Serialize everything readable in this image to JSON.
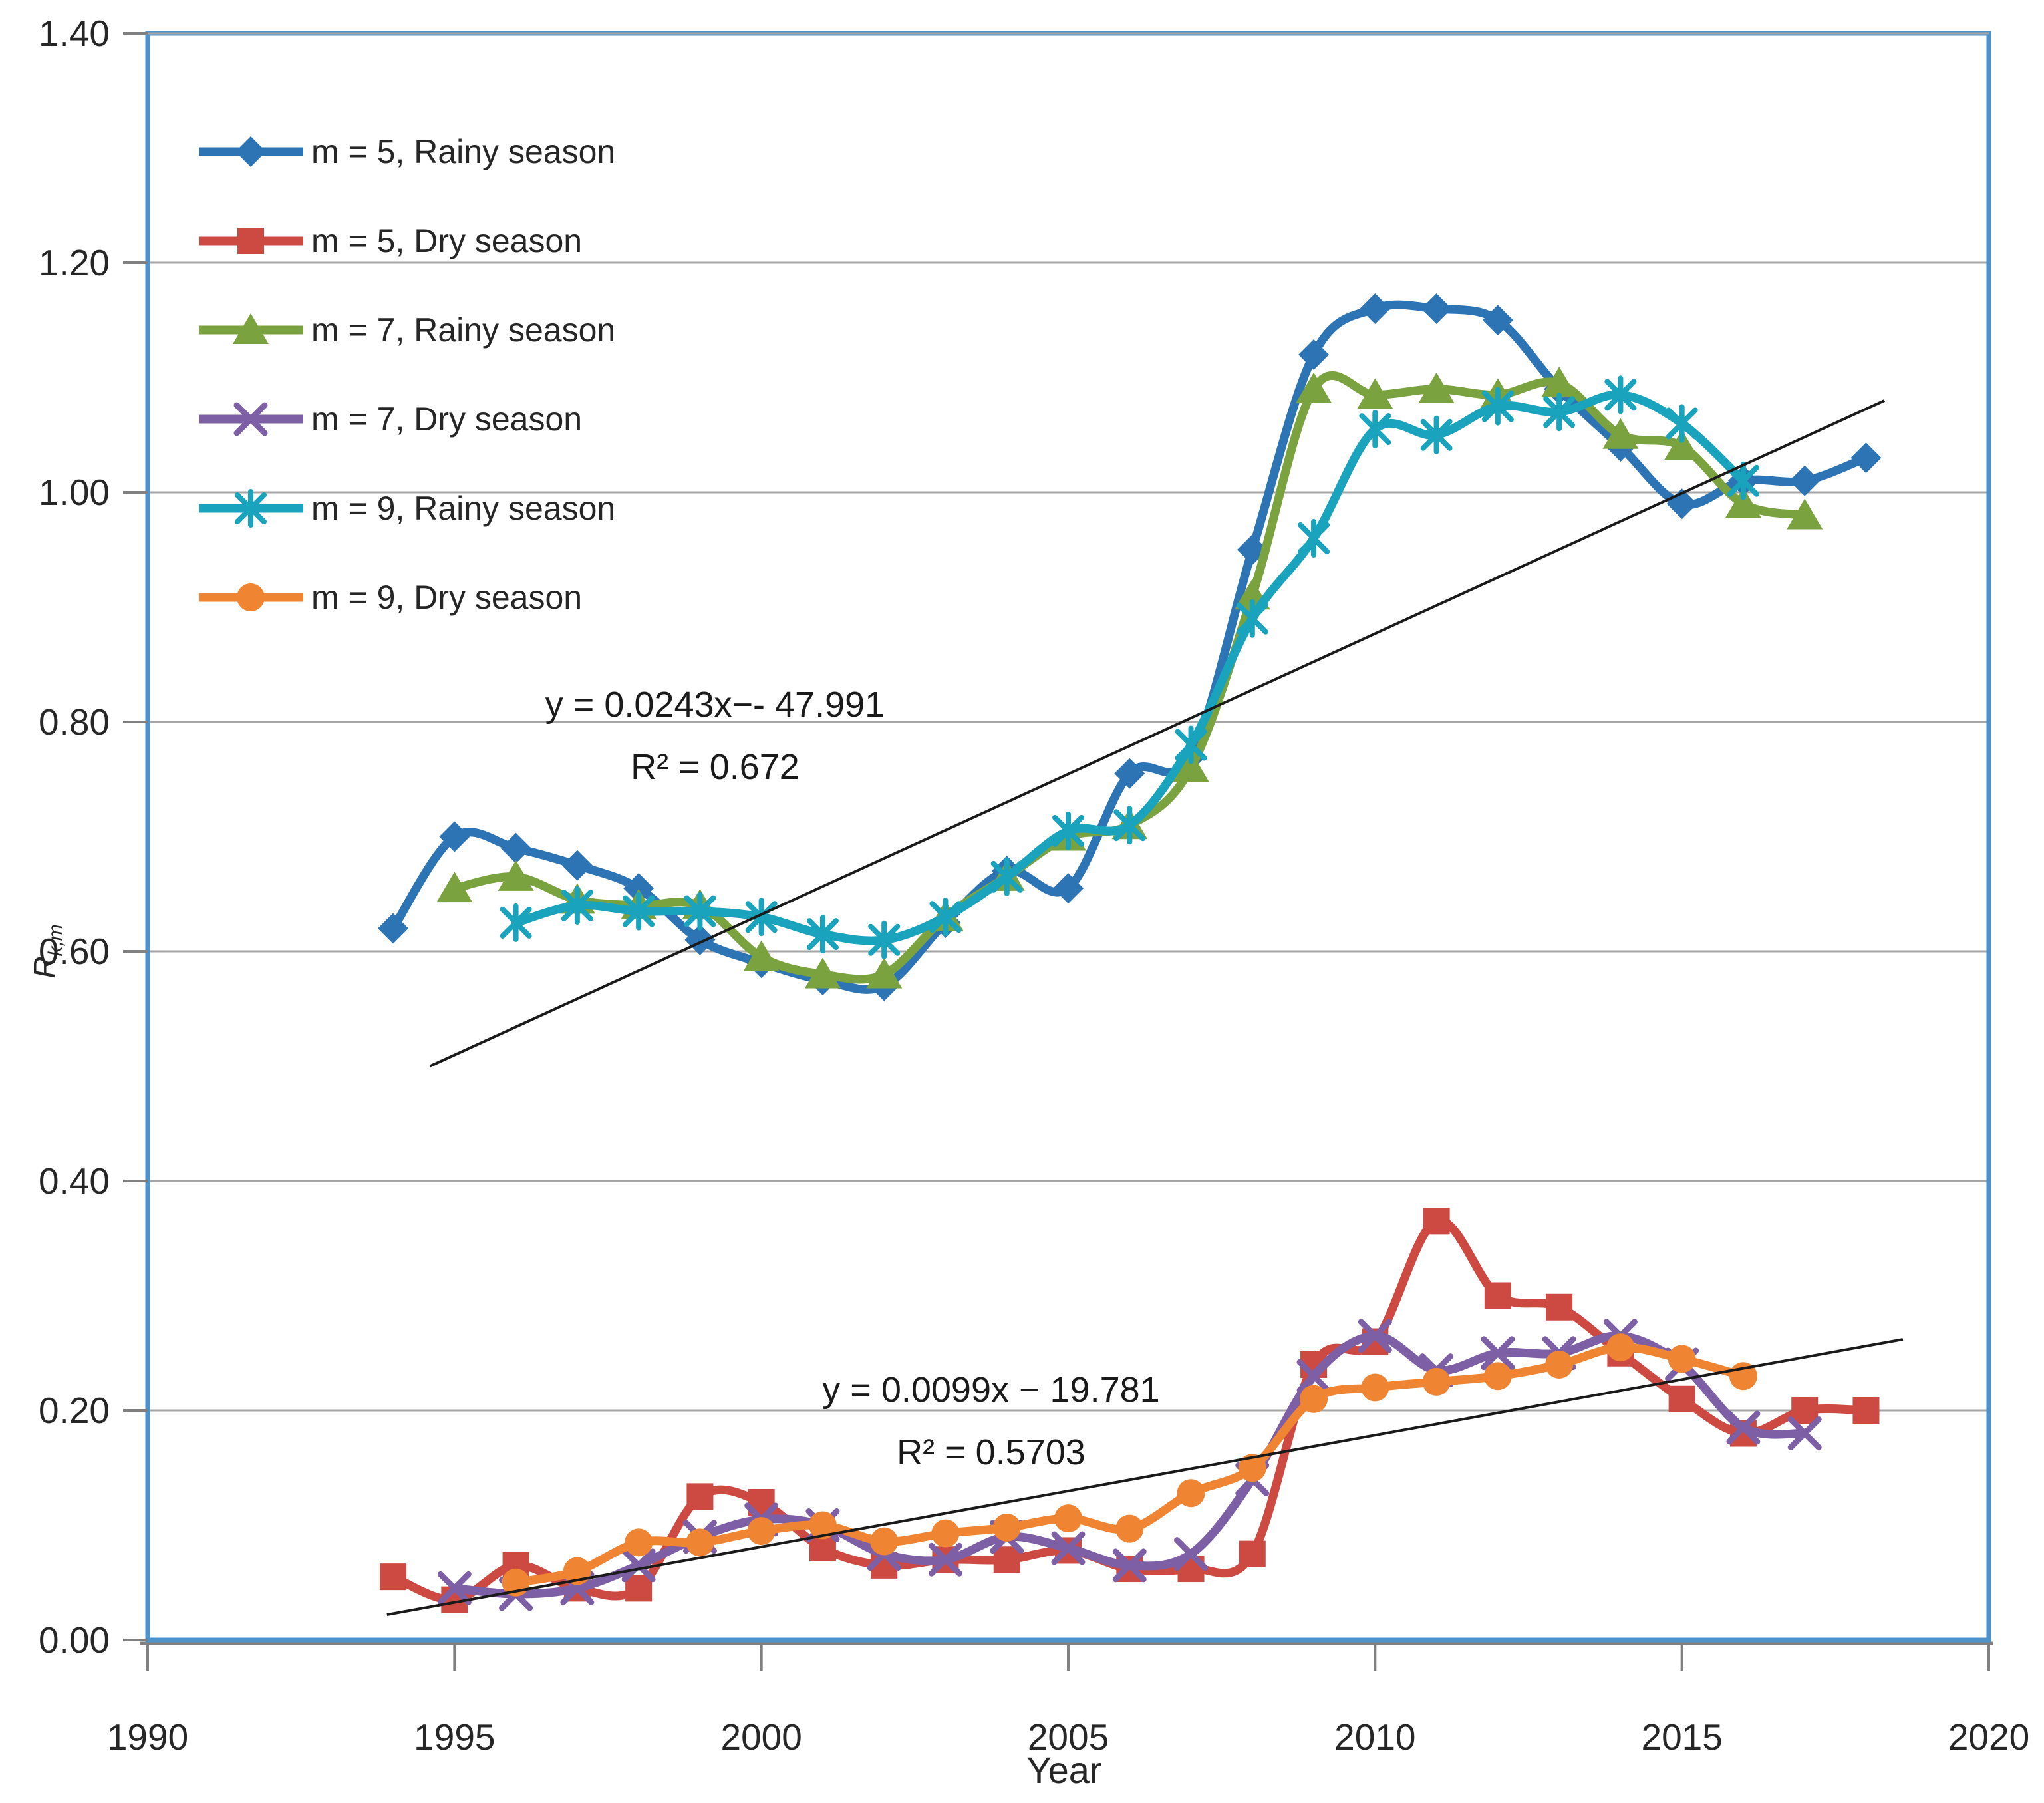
{
  "figure": {
    "background": "#ffffff"
  },
  "chart_data": {
    "type": "line",
    "title": "",
    "xlabel": "Year",
    "ylabel": {
      "main": "R",
      "sub": "k,m"
    },
    "xlim": [
      1990,
      2020
    ],
    "ylim": [
      0.0,
      1.4
    ],
    "x_ticks": [
      1990,
      1995,
      2000,
      2005,
      2010,
      2015,
      2020
    ],
    "y_ticks": [
      0.0,
      0.2,
      0.4,
      0.6,
      0.8,
      1.0,
      1.2,
      1.4
    ],
    "grid": "horizontal",
    "legend_position": "inside-top-left",
    "colors": {
      "plot_border": "#4d92c8",
      "gridline": "#a6a6a6",
      "axis_line": "#808080",
      "text": "#262626",
      "trendline": "#1a1a1a"
    },
    "series": [
      {
        "name": "m = 5, Rainy season",
        "color": "#2d74b5",
        "marker": "diamond",
        "x": [
          1994,
          1995,
          1996,
          1997,
          1998,
          1999,
          2000,
          2001,
          2002,
          2003,
          2004,
          2005,
          2006,
          2007,
          2008,
          2009,
          2010,
          2011,
          2012,
          2013,
          2014,
          2015,
          2016,
          2017,
          2018
        ],
        "y": [
          0.62,
          0.7,
          0.69,
          0.675,
          0.655,
          0.61,
          0.59,
          0.575,
          0.57,
          0.625,
          0.67,
          0.655,
          0.755,
          0.77,
          0.95,
          1.12,
          1.16,
          1.16,
          1.15,
          1.09,
          1.04,
          0.99,
          1.01,
          1.01,
          1.03
        ]
      },
      {
        "name": "m = 5, Dry season",
        "color": "#cd4a42",
        "marker": "square",
        "x": [
          1994,
          1995,
          1996,
          1997,
          1998,
          1999,
          2000,
          2001,
          2002,
          2003,
          2004,
          2005,
          2006,
          2007,
          2008,
          2009,
          2010,
          2011,
          2012,
          2013,
          2014,
          2015,
          2016,
          2017,
          2018
        ],
        "y": [
          0.055,
          0.035,
          0.065,
          0.045,
          0.045,
          0.125,
          0.12,
          0.08,
          0.065,
          0.07,
          0.07,
          0.078,
          0.062,
          0.062,
          0.075,
          0.24,
          0.26,
          0.365,
          0.3,
          0.29,
          0.25,
          0.21,
          0.18,
          0.2,
          0.2
        ]
      },
      {
        "name": "m = 7, Rainy season",
        "color": "#7aa23e",
        "marker": "triangle",
        "x": [
          1995,
          1996,
          1997,
          1998,
          1999,
          2000,
          2001,
          2002,
          2003,
          2004,
          2005,
          2006,
          2007,
          2008,
          2009,
          2010,
          2011,
          2012,
          2013,
          2014,
          2015,
          2016,
          2017
        ],
        "y": [
          0.655,
          0.665,
          0.645,
          0.64,
          0.64,
          0.595,
          0.58,
          0.58,
          0.63,
          0.665,
          0.7,
          0.71,
          0.76,
          0.91,
          1.09,
          1.085,
          1.09,
          1.085,
          1.095,
          1.05,
          1.04,
          0.99,
          0.98
        ]
      },
      {
        "name": "m = 7, Dry season",
        "color": "#7d5fa5",
        "marker": "x",
        "x": [
          1995,
          1996,
          1997,
          1998,
          1999,
          2000,
          2001,
          2002,
          2003,
          2004,
          2005,
          2006,
          2007,
          2008,
          2009,
          2010,
          2011,
          2012,
          2013,
          2014,
          2015,
          2016,
          2017
        ],
        "y": [
          0.045,
          0.04,
          0.045,
          0.065,
          0.09,
          0.105,
          0.1,
          0.075,
          0.07,
          0.09,
          0.08,
          0.065,
          0.075,
          0.14,
          0.23,
          0.265,
          0.235,
          0.25,
          0.25,
          0.265,
          0.24,
          0.185,
          0.18
        ]
      },
      {
        "name": "m = 9, Rainy season",
        "color": "#19a3bd",
        "marker": "asterisk",
        "x": [
          1996,
          1997,
          1998,
          1999,
          2000,
          2001,
          2002,
          2003,
          2004,
          2005,
          2006,
          2007,
          2008,
          2009,
          2010,
          2011,
          2012,
          2013,
          2014,
          2015,
          2016
        ],
        "y": [
          0.625,
          0.64,
          0.635,
          0.635,
          0.63,
          0.615,
          0.61,
          0.63,
          0.665,
          0.705,
          0.71,
          0.78,
          0.89,
          0.96,
          1.055,
          1.05,
          1.075,
          1.07,
          1.085,
          1.06,
          1.01
        ]
      },
      {
        "name": "m = 9, Dry season",
        "color": "#ef8532",
        "marker": "circle",
        "x": [
          1996,
          1997,
          1998,
          1999,
          2000,
          2001,
          2002,
          2003,
          2004,
          2005,
          2006,
          2007,
          2008,
          2009,
          2010,
          2011,
          2012,
          2013,
          2014,
          2015,
          2016
        ],
        "y": [
          0.05,
          0.06,
          0.085,
          0.085,
          0.095,
          0.1,
          0.086,
          0.093,
          0.098,
          0.106,
          0.097,
          0.128,
          0.15,
          0.21,
          0.22,
          0.225,
          0.23,
          0.24,
          0.255,
          0.245,
          0.23
        ]
      }
    ],
    "trendlines": [
      {
        "equation": "y = 0.0243x−- 47.991",
        "r2": "R² = 0.672",
        "x1": 1994.6,
        "y1": 0.5,
        "x2": 2018.3,
        "y2": 1.08
      },
      {
        "equation": "y = 0.0099x − 19.781",
        "r2": "R² = 0.5703",
        "x1": 1993.9,
        "y1": 0.022,
        "x2": 2018.6,
        "y2": 0.262
      }
    ]
  }
}
